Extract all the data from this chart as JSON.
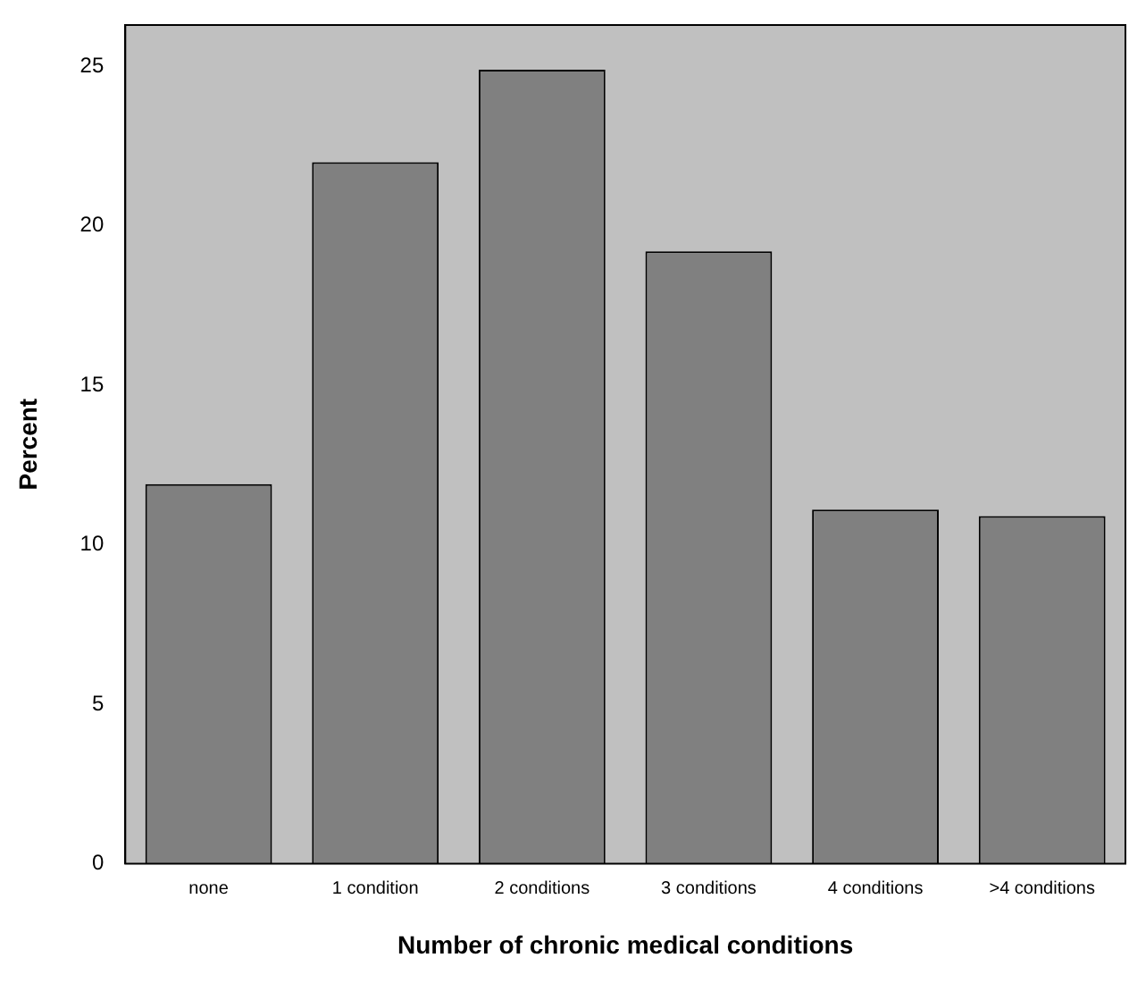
{
  "chart_data": {
    "type": "bar",
    "xlabel": "Number of chronic medical conditions",
    "ylabel": "Percent",
    "categories": [
      "none",
      "1 condition",
      "2 conditions",
      "3 conditions",
      "4 conditions",
      ">4 conditions"
    ],
    "values": [
      11.9,
      22.0,
      24.9,
      19.2,
      11.1,
      10.9
    ],
    "color": "#808080",
    "ylim": [
      0,
      26.3
    ],
    "yticks": [
      0,
      5,
      10,
      15,
      20,
      25
    ],
    "grid": false,
    "legend": false
  }
}
